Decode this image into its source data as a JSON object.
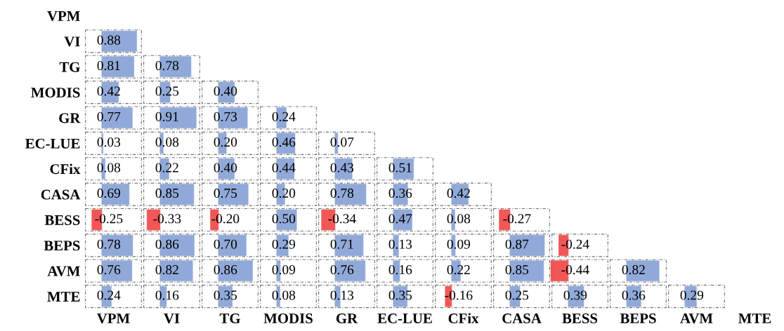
{
  "chart_data": {
    "type": "heatmap",
    "categories": [
      "VPM",
      "VI",
      "TG",
      "MODIS",
      "GR",
      "EC-LUE",
      "CFix",
      "CASA",
      "BESS",
      "BEPS",
      "AVM",
      "MTE"
    ],
    "y_categories": [
      "VPM",
      "VI",
      "TG",
      "MODIS",
      "GR",
      "EC-LUE",
      "CFix",
      "CASA",
      "BESS",
      "BEPS",
      "AVM",
      "MTE"
    ],
    "cells": [
      [
        null,
        null,
        null,
        null,
        null,
        null,
        null,
        null,
        null,
        null,
        null,
        null
      ],
      [
        0.88,
        null,
        null,
        null,
        null,
        null,
        null,
        null,
        null,
        null,
        null,
        null
      ],
      [
        0.81,
        0.78,
        null,
        null,
        null,
        null,
        null,
        null,
        null,
        null,
        null,
        null
      ],
      [
        0.42,
        0.25,
        0.4,
        null,
        null,
        null,
        null,
        null,
        null,
        null,
        null,
        null
      ],
      [
        0.77,
        0.91,
        0.73,
        0.24,
        null,
        null,
        null,
        null,
        null,
        null,
        null,
        null
      ],
      [
        0.03,
        0.08,
        0.2,
        0.46,
        0.07,
        null,
        null,
        null,
        null,
        null,
        null,
        null
      ],
      [
        0.08,
        0.22,
        0.4,
        0.44,
        0.43,
        0.51,
        null,
        null,
        null,
        null,
        null,
        null
      ],
      [
        0.69,
        0.85,
        0.75,
        0.2,
        0.78,
        0.36,
        0.42,
        null,
        null,
        null,
        null,
        null
      ],
      [
        -0.25,
        -0.33,
        -0.2,
        0.5,
        -0.34,
        0.47,
        0.08,
        -0.27,
        null,
        null,
        null,
        null
      ],
      [
        0.78,
        0.86,
        0.7,
        0.29,
        0.71,
        0.13,
        0.09,
        0.87,
        -0.24,
        null,
        null,
        null
      ],
      [
        0.76,
        0.82,
        0.86,
        0.09,
        0.76,
        0.16,
        0.22,
        0.85,
        -0.44,
        0.82,
        null,
        null
      ],
      [
        0.24,
        0.16,
        0.35,
        0.08,
        0.13,
        0.35,
        -0.16,
        0.25,
        0.39,
        0.36,
        0.29,
        null
      ]
    ],
    "cell_labels": [
      [
        null,
        null,
        null,
        null,
        null,
        null,
        null,
        null,
        null,
        null,
        null,
        null
      ],
      [
        "0.88",
        null,
        null,
        null,
        null,
        null,
        null,
        null,
        null,
        null,
        null,
        null
      ],
      [
        "0.81",
        "0.78",
        null,
        null,
        null,
        null,
        null,
        null,
        null,
        null,
        null,
        null
      ],
      [
        "0.42",
        "0.25",
        "0.40",
        null,
        null,
        null,
        null,
        null,
        null,
        null,
        null,
        null
      ],
      [
        "0.77",
        "0.91",
        "0.73",
        "0.24",
        null,
        null,
        null,
        null,
        null,
        null,
        null,
        null
      ],
      [
        "0.03",
        "0.08",
        "0.20",
        "0.46",
        "0.07",
        null,
        null,
        null,
        null,
        null,
        null,
        null
      ],
      [
        "0.08",
        "0.22",
        "0.40",
        "0.44",
        "0.43",
        "0.51",
        null,
        null,
        null,
        null,
        null,
        null
      ],
      [
        "0.69",
        "0.85",
        "0.75",
        "0.20",
        "0.78",
        "0.36",
        "0.42",
        null,
        null,
        null,
        null,
        null
      ],
      [
        "-0.25",
        "-0.33",
        "-0.20",
        "0.50",
        "-0.34",
        "0.47",
        "0.08",
        "-0.27",
        null,
        null,
        null,
        null
      ],
      [
        "0.78",
        "0.86",
        "0.70",
        "0.29",
        "0.71",
        "0.13",
        "0.09",
        "0.87",
        "-0.24",
        null,
        null,
        null
      ],
      [
        "0.76",
        "0.82",
        "0.86",
        "0.09",
        "0.76",
        "0.16",
        "0.22",
        "0.85",
        "-0.44",
        "0.82",
        null,
        null
      ],
      [
        "0.24",
        "0.16",
        "0.35",
        "0.08",
        "0.13",
        "0.35",
        "-0.16",
        "0.25",
        "0.39",
        "0.36",
        "0.29",
        null
      ]
    ]
  }
}
